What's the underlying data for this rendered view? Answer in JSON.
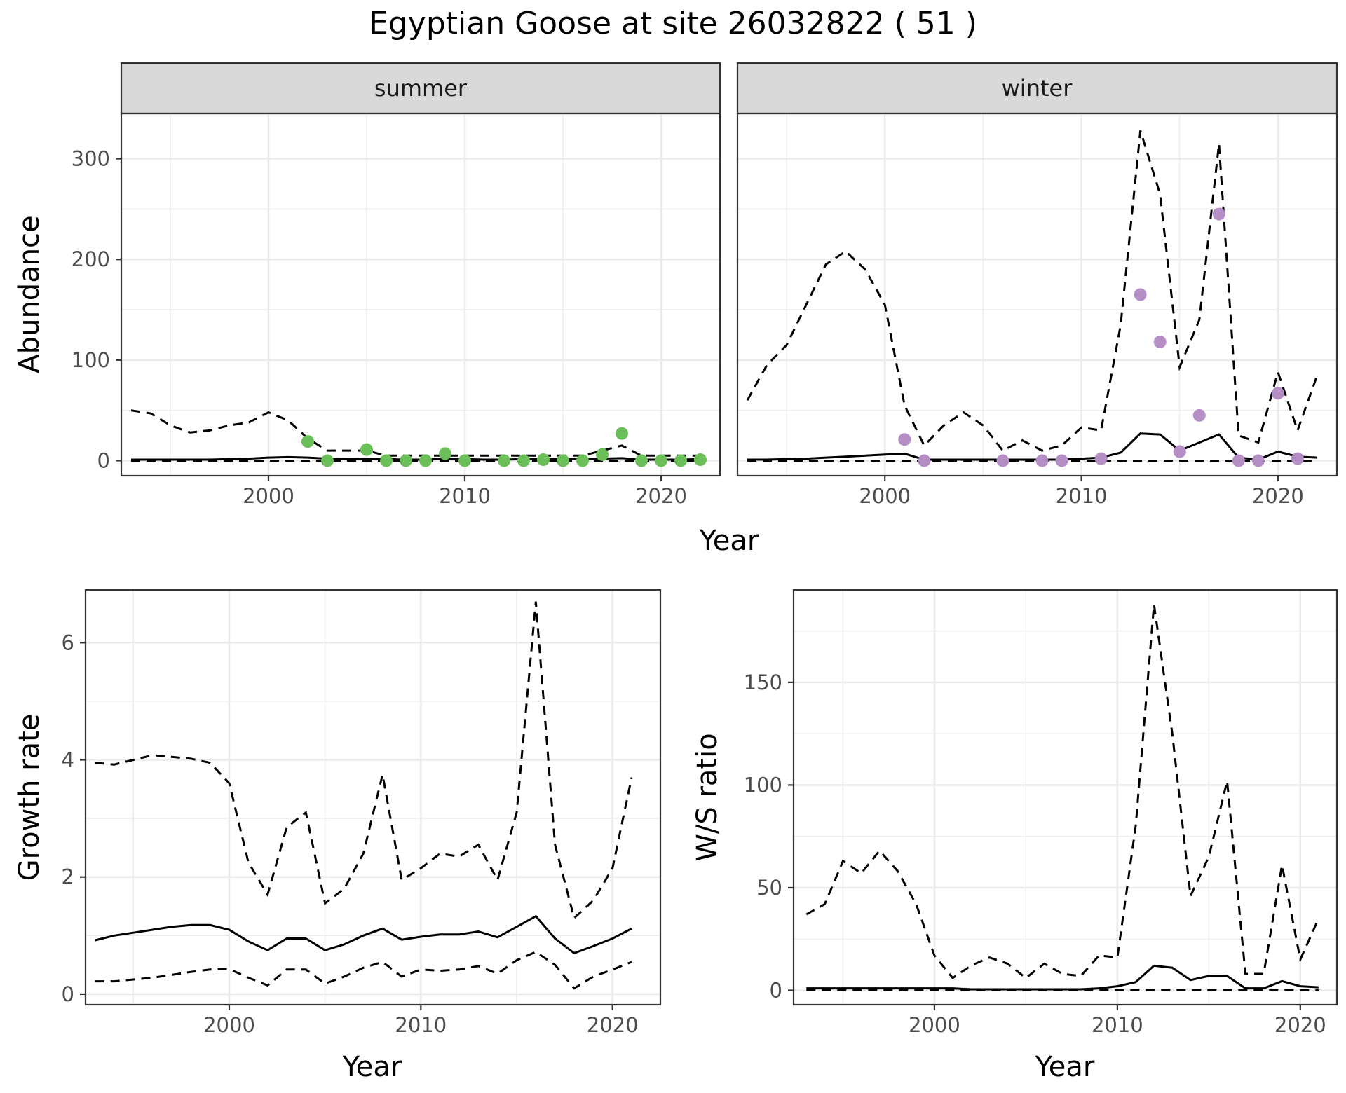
{
  "figure": {
    "title": "Egyptian Goose at site 26032822 ( 51 )"
  },
  "chart_data": [
    {
      "type": "line",
      "id": "abundance",
      "facets": [
        "summer",
        "winter"
      ],
      "xlabel": "Year",
      "ylabel": "Abundance",
      "xlim": [
        1992.5,
        2023
      ],
      "ylim": [
        -15,
        345
      ],
      "xticks": [
        2000,
        2010,
        2020
      ],
      "yticks": [
        0,
        100,
        200,
        300
      ],
      "panels": [
        {
          "facet": "summer",
          "point_color": "#6bbf59",
          "x": [
            1993,
            1994,
            1995,
            1996,
            1997,
            1998,
            1999,
            2000,
            2001,
            2002,
            2003,
            2004,
            2005,
            2006,
            2007,
            2008,
            2009,
            2010,
            2011,
            2012,
            2013,
            2014,
            2015,
            2016,
            2017,
            2018,
            2019,
            2020,
            2021,
            2022
          ],
          "mean": [
            1,
            1,
            1,
            1,
            1,
            1.5,
            2,
            3,
            3.5,
            3,
            2,
            1.5,
            2,
            1.5,
            1,
            1,
            2,
            1.5,
            1,
            1,
            1.5,
            1.5,
            1.5,
            1.5,
            2,
            2.5,
            1,
            1,
            1,
            1.5
          ],
          "lower": [
            0,
            0,
            0,
            0,
            0,
            0,
            0,
            0,
            0,
            0,
            0,
            0,
            0,
            0,
            0,
            0,
            0,
            0,
            0,
            0,
            0,
            0,
            0,
            0,
            0,
            0,
            0,
            0,
            0,
            0
          ],
          "upper": [
            50,
            47,
            35,
            28,
            30,
            35,
            38,
            48,
            40,
            22,
            10,
            10,
            10,
            5,
            5,
            5,
            5,
            5,
            5,
            5,
            5,
            5,
            5,
            5,
            10,
            15,
            5,
            5,
            5,
            5
          ],
          "observed_x": [
            2002,
            2003,
            2005,
            2006,
            2007,
            2008,
            2009,
            2010,
            2012,
            2013,
            2014,
            2015,
            2016,
            2017,
            2018,
            2019,
            2020,
            2021,
            2022
          ],
          "observed_y": [
            19,
            0,
            11,
            0,
            0,
            0,
            7,
            0,
            0,
            0,
            1,
            0,
            0,
            6,
            27,
            0,
            0,
            0,
            1
          ]
        },
        {
          "facet": "winter",
          "point_color": "#b48ec5",
          "x": [
            1993,
            1994,
            1995,
            1996,
            1997,
            1998,
            1999,
            2000,
            2001,
            2002,
            2003,
            2004,
            2005,
            2006,
            2007,
            2008,
            2009,
            2010,
            2011,
            2012,
            2013,
            2014,
            2015,
            2016,
            2017,
            2018,
            2019,
            2020,
            2021,
            2022
          ],
          "mean": [
            1,
            1,
            1.5,
            2,
            3,
            4,
            5,
            6,
            7,
            1,
            1,
            1,
            1,
            1,
            1,
            1,
            1,
            2,
            3,
            8,
            27,
            26,
            10,
            18,
            26,
            3,
            1,
            9,
            4,
            3
          ],
          "lower": [
            0,
            0,
            0,
            0,
            0,
            0,
            0,
            0,
            0,
            0,
            0,
            0,
            0,
            0,
            0,
            0,
            0,
            0,
            0,
            0,
            0,
            0,
            0,
            0,
            0,
            0,
            0,
            0,
            0,
            0
          ],
          "upper": [
            60,
            95,
            115,
            155,
            195,
            208,
            190,
            155,
            55,
            15,
            35,
            48,
            35,
            10,
            20,
            10,
            15,
            33,
            30,
            135,
            328,
            265,
            93,
            140,
            315,
            25,
            18,
            88,
            30,
            85
          ],
          "observed_x": [
            2001,
            2002,
            2006,
            2008,
            2009,
            2011,
            2013,
            2014,
            2015,
            2016,
            2017,
            2018,
            2019,
            2020,
            2021
          ],
          "observed_y": [
            21,
            0,
            0,
            0,
            0,
            2,
            165,
            118,
            9,
            45,
            245,
            0,
            0,
            67,
            2
          ]
        }
      ]
    },
    {
      "type": "line",
      "id": "growth",
      "xlabel": "Year",
      "ylabel": "Growth rate",
      "xlim": [
        1992.5,
        2022.5
      ],
      "ylim": [
        -0.18,
        6.9
      ],
      "xticks": [
        2000,
        2010,
        2020
      ],
      "yticks": [
        0,
        2,
        4,
        6
      ],
      "x": [
        1993,
        1994,
        1995,
        1996,
        1997,
        1998,
        1999,
        2000,
        2001,
        2002,
        2003,
        2004,
        2005,
        2006,
        2007,
        2008,
        2009,
        2010,
        2011,
        2012,
        2013,
        2014,
        2015,
        2016,
        2017,
        2018,
        2019,
        2020,
        2021
      ],
      "mean": [
        0.92,
        1.0,
        1.05,
        1.1,
        1.15,
        1.18,
        1.18,
        1.1,
        0.9,
        0.75,
        0.95,
        0.95,
        0.75,
        0.85,
        1.0,
        1.12,
        0.93,
        0.98,
        1.02,
        1.02,
        1.07,
        0.97,
        1.15,
        1.33,
        0.95,
        0.7,
        0.82,
        0.95,
        1.12
      ],
      "lower": [
        0.22,
        0.22,
        0.25,
        0.28,
        0.33,
        0.38,
        0.42,
        0.43,
        0.28,
        0.15,
        0.42,
        0.42,
        0.18,
        0.3,
        0.45,
        0.55,
        0.3,
        0.42,
        0.4,
        0.42,
        0.48,
        0.35,
        0.58,
        0.72,
        0.5,
        0.1,
        0.3,
        0.42,
        0.55
      ],
      "upper": [
        3.95,
        3.92,
        4.0,
        4.08,
        4.05,
        4.02,
        3.95,
        3.6,
        2.25,
        1.7,
        2.85,
        3.1,
        1.55,
        1.8,
        2.4,
        3.75,
        1.95,
        2.15,
        2.4,
        2.35,
        2.55,
        1.95,
        3.1,
        6.7,
        2.55,
        1.3,
        1.6,
        2.15,
        3.7
      ]
    },
    {
      "type": "line",
      "id": "ws_ratio",
      "xlabel": "Year",
      "ylabel": "W/S ratio",
      "xlim": [
        1992.3,
        2022
      ],
      "ylim": [
        -7,
        195
      ],
      "xticks": [
        2000,
        2010,
        2020
      ],
      "yticks": [
        0,
        50,
        100,
        150
      ],
      "x": [
        1993,
        1994,
        1995,
        1996,
        1997,
        1998,
        1999,
        2000,
        2001,
        2002,
        2003,
        2004,
        2005,
        2006,
        2007,
        2008,
        2009,
        2010,
        2011,
        2012,
        2013,
        2014,
        2015,
        2016,
        2017,
        2018,
        2019,
        2020,
        2021
      ],
      "mean": [
        1,
        1,
        1,
        1,
        1,
        1,
        1,
        1,
        1,
        0.5,
        0.5,
        0.5,
        0.5,
        0.5,
        0.5,
        0.5,
        1,
        2,
        4,
        12,
        11,
        5,
        7,
        7,
        1,
        1,
        4.5,
        2,
        1.5
      ],
      "lower": [
        0,
        0,
        0,
        0,
        0,
        0,
        0,
        0,
        0,
        0,
        0,
        0,
        0,
        0,
        0,
        0,
        0,
        0,
        0,
        0,
        0,
        0,
        0,
        0,
        0,
        0,
        0,
        0,
        0
      ],
      "upper": [
        37,
        42,
        63,
        57,
        68,
        58,
        42,
        17,
        6,
        12,
        16,
        13,
        6,
        13,
        8,
        7,
        17,
        16,
        80,
        188,
        125,
        46,
        65,
        102,
        8,
        8,
        61,
        15,
        35
      ]
    }
  ]
}
